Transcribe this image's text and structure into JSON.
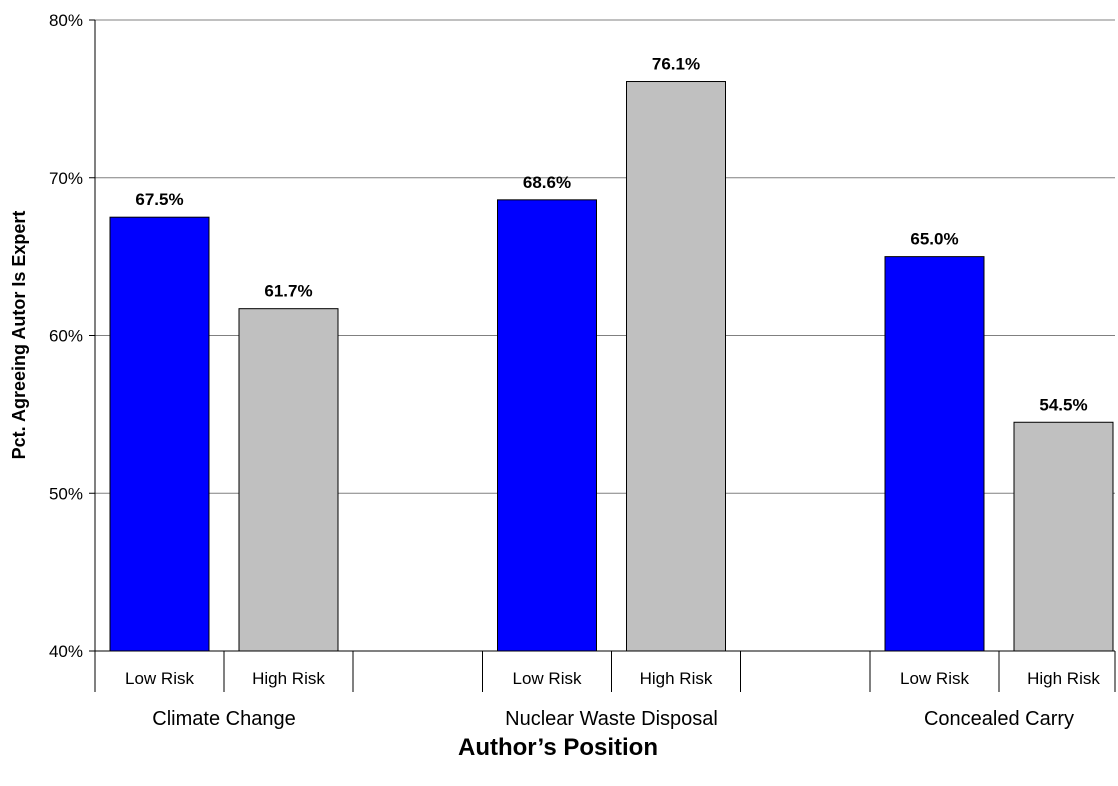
{
  "chart_data": {
    "type": "bar",
    "title": "",
    "xlabel": "Author’s Position",
    "ylabel": "Pct. Agreeing Autor Is Expert",
    "ylim": [
      40,
      80
    ],
    "yticks": [
      40,
      50,
      60,
      70,
      80
    ],
    "ytick_labels": [
      "40%",
      "50%",
      "60%",
      "70%",
      "80%"
    ],
    "grid": true,
    "groups": [
      {
        "name": "Climate Change",
        "bars": [
          {
            "category": "Low Risk",
            "value": 67.5,
            "label": "67.5%"
          },
          {
            "category": "High Risk",
            "value": 61.7,
            "label": "61.7%"
          }
        ]
      },
      {
        "name": "Nuclear Waste Disposal",
        "bars": [
          {
            "category": "Low Risk",
            "value": 68.6,
            "label": "68.6%"
          },
          {
            "category": "High Risk",
            "value": 76.1,
            "label": "76.1%"
          }
        ]
      },
      {
        "name": "Concealed Carry",
        "bars": [
          {
            "category": "Low Risk",
            "value": 65.0,
            "label": "65.0%"
          },
          {
            "category": "High Risk",
            "value": 54.5,
            "label": "54.5%"
          }
        ]
      }
    ],
    "colors": {
      "Low Risk": "#0000ff",
      "High Risk": "#c0c0c0"
    }
  }
}
